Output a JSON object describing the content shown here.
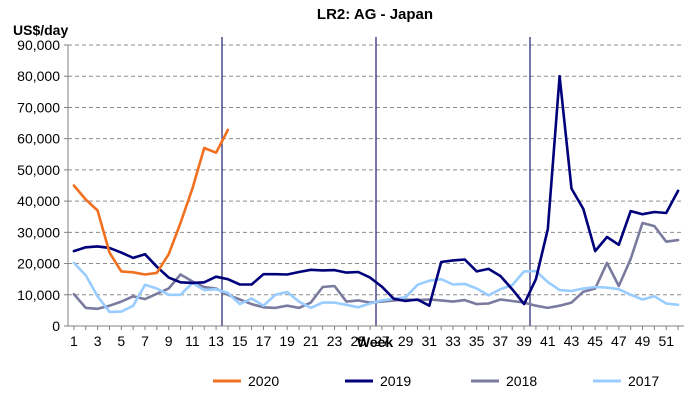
{
  "chart_data": {
    "type": "line",
    "title": "LR2: AG - Japan",
    "ylabel": "US$/day",
    "xlabel": "Week",
    "ylim": [
      0,
      90000
    ],
    "yticks": [
      0,
      10000,
      20000,
      30000,
      40000,
      50000,
      60000,
      70000,
      80000,
      90000
    ],
    "ytick_labels": [
      "0",
      "10,000",
      "20,000",
      "30,000",
      "40,000",
      "50,000",
      "60,000",
      "70,000",
      "80,000",
      "90,000"
    ],
    "xlim": [
      1,
      52
    ],
    "xticks": [
      1,
      3,
      5,
      7,
      9,
      11,
      13,
      15,
      17,
      19,
      21,
      23,
      25,
      27,
      29,
      31,
      33,
      35,
      37,
      39,
      41,
      43,
      45,
      47,
      49,
      51
    ],
    "xtick_labels": [
      "1",
      "3",
      "5",
      "7",
      "9",
      "11",
      "13",
      "15",
      "17",
      "19",
      "21",
      "23",
      "25",
      "27",
      "29",
      "31",
      "33",
      "35",
      "37",
      "39",
      "41",
      "43",
      "45",
      "47",
      "49",
      "51"
    ],
    "grid": "horizontal dashed",
    "vertical_markers": [
      13.5,
      26.5,
      39.5
    ],
    "legend_position": "bottom",
    "series": [
      {
        "name": "2020",
        "color": "#F07020",
        "values": [
          45000,
          40500,
          37000,
          23500,
          17500,
          17200,
          16500,
          17000,
          23000,
          33000,
          44000,
          57000,
          55500,
          62800
        ]
      },
      {
        "name": "2019",
        "color": "#00007A",
        "values": [
          24000,
          25200,
          25500,
          25000,
          23500,
          21800,
          23000,
          19000,
          15500,
          14000,
          13800,
          14000,
          15800,
          15000,
          13300,
          13300,
          16600,
          16600,
          16500,
          17300,
          18000,
          17800,
          17900,
          17100,
          17300,
          15500,
          12600,
          8700,
          8000,
          8500,
          6500,
          20500,
          21000,
          21300,
          17500,
          18300,
          16000,
          11800,
          7000,
          15000,
          31000,
          80000,
          44000,
          37500,
          24000,
          28500,
          26000,
          36800,
          35800,
          36500,
          36200,
          43300
        ]
      },
      {
        "name": "2018",
        "color": "#7B7BA0",
        "values": [
          10200,
          5800,
          5500,
          6500,
          7800,
          9500,
          8600,
          10300,
          12000,
          16500,
          14300,
          12500,
          12000,
          10000,
          8500,
          7000,
          6000,
          5800,
          6500,
          5800,
          7500,
          12500,
          12800,
          7800,
          8200,
          7500,
          7800,
          8200,
          8500,
          8300,
          8500,
          8200,
          7800,
          8300,
          7000,
          7200,
          8500,
          8000,
          7500,
          6500,
          5800,
          6500,
          7500,
          11000,
          12000,
          20200,
          12800,
          21500,
          33000,
          32000,
          27000,
          27500
        ]
      },
      {
        "name": "2017",
        "color": "#99CCFF",
        "values": [
          20200,
          16200,
          9500,
          4500,
          4600,
          6500,
          13200,
          12000,
          10000,
          10000,
          13800,
          11500,
          11800,
          10600,
          7000,
          8800,
          6500,
          10000,
          10900,
          7800,
          5800,
          7500,
          7500,
          6800,
          6000,
          7200,
          8200,
          8700,
          9200,
          13200,
          14500,
          15000,
          13300,
          13500,
          12000,
          9800,
          11800,
          13100,
          17500,
          17600,
          14100,
          11500,
          11200,
          12000,
          12500,
          12300,
          11800,
          10000,
          8500,
          9500,
          7200,
          6800
        ]
      }
    ]
  }
}
